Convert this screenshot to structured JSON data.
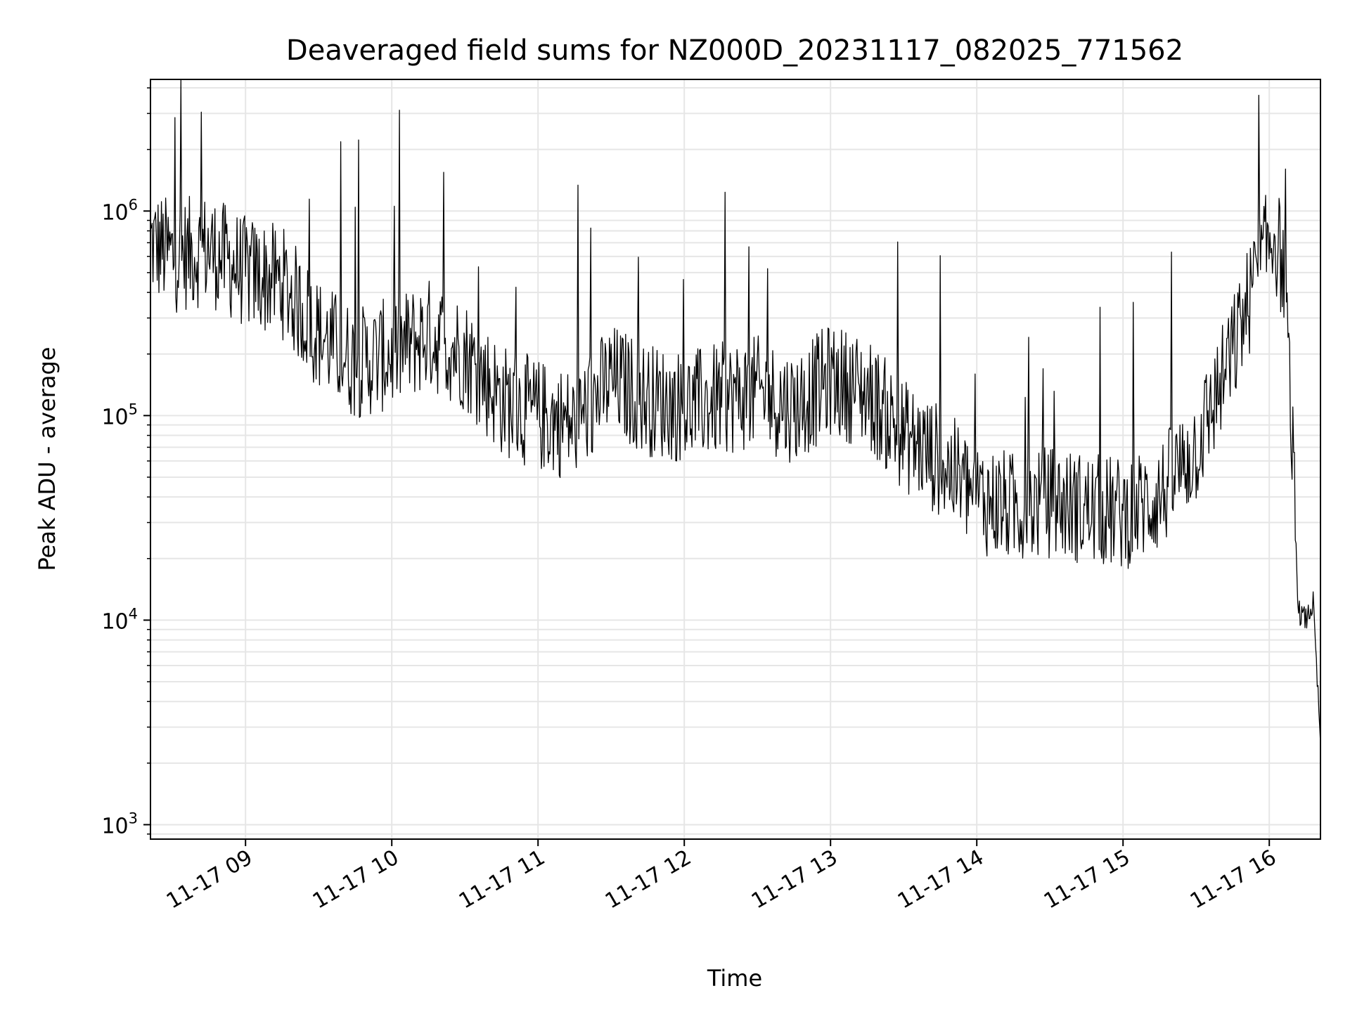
{
  "chart_data": {
    "type": "line",
    "title": "Deaveraged field sums for NZ000D_20231117_082025_771562",
    "xlabel": "Time",
    "ylabel": "Peak ADU - average",
    "y_scale": "log",
    "grid": true,
    "line_color": "#000000",
    "grid_color": "#e6e6e6",
    "xlim": [
      "2023-11-17 08:21",
      "2023-11-17 16:21"
    ],
    "ylim": [
      850,
      4400000
    ],
    "x_ticks": [
      {
        "value": "2023-11-17 09:00",
        "label": "11-17 09"
      },
      {
        "value": "2023-11-17 10:00",
        "label": "11-17 10"
      },
      {
        "value": "2023-11-17 11:00",
        "label": "11-17 11"
      },
      {
        "value": "2023-11-17 12:00",
        "label": "11-17 12"
      },
      {
        "value": "2023-11-17 13:00",
        "label": "11-17 13"
      },
      {
        "value": "2023-11-17 14:00",
        "label": "11-17 14"
      },
      {
        "value": "2023-11-17 15:00",
        "label": "11-17 15"
      },
      {
        "value": "2023-11-17 16:00",
        "label": "11-17 16"
      }
    ],
    "y_ticks": [
      {
        "value": 1000,
        "base": "10",
        "exp": "3"
      },
      {
        "value": 10000,
        "base": "10",
        "exp": "4"
      },
      {
        "value": 100000,
        "base": "10",
        "exp": "5"
      },
      {
        "value": 1000000,
        "base": "10",
        "exp": "6"
      }
    ],
    "series": [
      {
        "x": [
          "2023-11-17 08:21",
          "2023-11-17 08:30",
          "2023-11-17 08:45",
          "2023-11-17 09:00",
          "2023-11-17 09:15",
          "2023-11-17 09:30",
          "2023-11-17 09:45",
          "2023-11-17 10:00",
          "2023-11-17 10:15",
          "2023-11-17 10:30",
          "2023-11-17 10:45",
          "2023-11-17 11:00",
          "2023-11-17 11:15",
          "2023-11-17 11:30",
          "2023-11-17 11:45",
          "2023-11-17 12:00",
          "2023-11-17 12:15",
          "2023-11-17 12:30",
          "2023-11-17 12:45",
          "2023-11-17 13:00",
          "2023-11-17 13:15",
          "2023-11-17 13:30",
          "2023-11-17 13:45",
          "2023-11-17 14:00",
          "2023-11-17 14:15",
          "2023-11-17 14:30",
          "2023-11-17 14:45",
          "2023-11-17 15:00",
          "2023-11-17 15:15",
          "2023-11-17 15:30",
          "2023-11-17 15:45",
          "2023-11-17 15:55",
          "2023-11-17 16:02",
          "2023-11-17 16:06",
          "2023-11-17 16:09",
          "2023-11-17 16:12",
          "2023-11-17 16:15",
          "2023-11-17 16:18",
          "2023-11-17 16:21"
        ],
        "y": [
          700000,
          600000,
          650000,
          500000,
          450000,
          250000,
          180000,
          200000,
          250000,
          200000,
          120000,
          100000,
          90000,
          150000,
          120000,
          110000,
          120000,
          130000,
          110000,
          150000,
          130000,
          80000,
          60000,
          40000,
          35000,
          38000,
          35000,
          33000,
          40000,
          70000,
          200000,
          500000,
          800000,
          500000,
          100000,
          11000,
          10000,
          12000,
          2500
        ]
      }
    ]
  }
}
